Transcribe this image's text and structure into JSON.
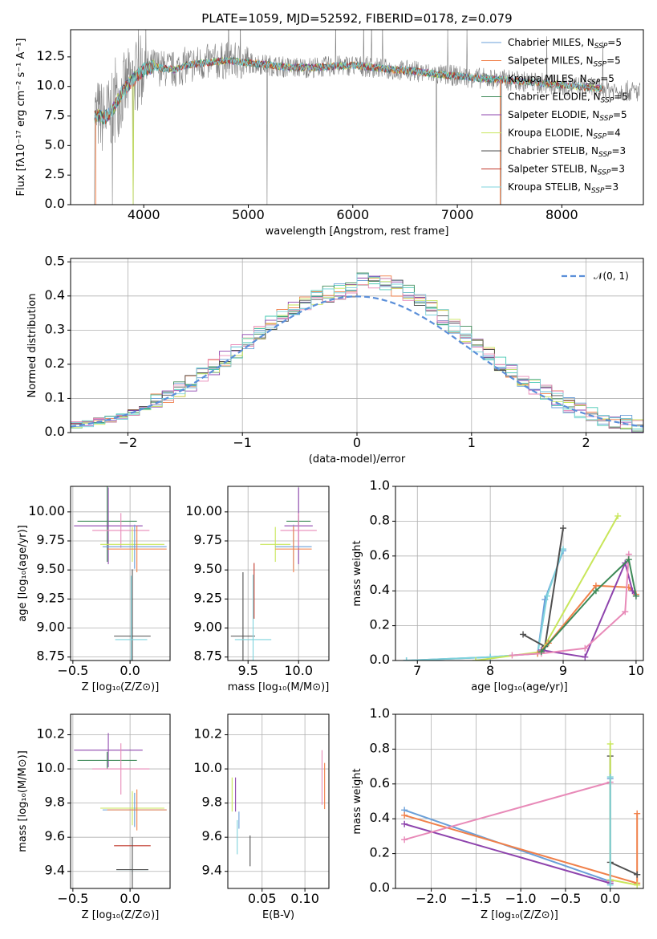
{
  "colors": {
    "chabrier_miles": "#6a9fd8",
    "salpeter_miles": "#f0804a",
    "kroupa_miles": "#40c7b0",
    "chabrier_elodie": "#3e8a58",
    "salpeter_elodie": "#8e44ad",
    "kroupa_elodie": "#c8e65a",
    "chabrier_stelib": "#505050",
    "salpeter_stelib": "#c0392b",
    "kroupa_stelib": "#7fd3dc",
    "pink": "#e88ab8",
    "data": "#808080",
    "normal": "#5b8fd9"
  },
  "chart_data": [
    {
      "id": "spectrum",
      "type": "line",
      "title": "PLATE=1059, MJD=52592, FIBERID=0178, z=0.079",
      "xlabel": "wavelength [Angstrom, rest frame]",
      "ylabel": "Flux [fλ10⁻¹⁷ erg cm⁻² s⁻¹ A⁻¹]",
      "xlim": [
        3300,
        8780
      ],
      "ylim": [
        0,
        14.8
      ],
      "xticks": [
        4000,
        5000,
        6000,
        7000,
        8000
      ],
      "yticks": [
        0.0,
        2.5,
        5.0,
        7.5,
        10.0,
        12.5
      ],
      "grid": false,
      "legend_position": "top-right",
      "legend": [
        "Chabrier MILES, N_SSP=5",
        "Salpeter MILES, N_SSP=5",
        "Kroupa MILES, N_SSP=5",
        "Chabrier ELODIE, N_SSP=5",
        "Salpeter ELODIE, N_SSP=5",
        "Kroupa ELODIE, N_SSP=4",
        "Chabrier STELIB, N_SSP=3",
        "Salpeter STELIB, N_SSP=3",
        "Kroupa STELIB, N_SSP=3"
      ],
      "model_curve": {
        "x": [
          3500,
          3560,
          3620,
          3700,
          3800,
          3900,
          4000,
          4100,
          4200,
          4300,
          4400,
          4600,
          4800,
          5000,
          5200,
          5400,
          5600,
          5800,
          6000,
          6200,
          6400,
          6600,
          6800,
          7000,
          7200,
          7400
        ],
        "y": [
          7.2,
          7.6,
          7.3,
          8.0,
          9.6,
          10.6,
          11.4,
          11.7,
          11.5,
          11.4,
          11.8,
          12.0,
          12.2,
          12.0,
          11.8,
          11.6,
          11.6,
          11.7,
          11.8,
          11.6,
          11.4,
          11.3,
          11.0,
          10.9,
          10.7,
          10.6
        ]
      },
      "data_curve_note": "noisy observed spectrum"
    },
    {
      "id": "residuals",
      "type": "line",
      "xlabel": "(data-model)/error",
      "ylabel": "Normed distribution",
      "xlim": [
        -2.5,
        2.5
      ],
      "ylim": [
        0,
        0.51
      ],
      "xticks": [
        -2,
        -1,
        0,
        1,
        2
      ],
      "yticks": [
        0.0,
        0.1,
        0.2,
        0.3,
        0.4,
        0.5
      ],
      "grid": true,
      "legend_position": "top-right",
      "legend": [
        "𝒩(0, 1)"
      ],
      "normal": {
        "mean": 0,
        "sigma": 1
      }
    },
    {
      "id": "age-Z",
      "type": "scatter",
      "xlabel": "Z [log₁₀(Z/Z⊙)]",
      "ylabel": "age  [log₁₀(age/yr)]",
      "xlim": [
        -0.52,
        0.35
      ],
      "ylim": [
        8.72,
        10.22
      ],
      "xticks": [
        -0.5,
        0.0
      ],
      "yticks": [
        8.75,
        9.0,
        9.25,
        9.5,
        9.75,
        10.0
      ],
      "grid": true,
      "points": [
        {
          "x": -0.2,
          "y": 9.92,
          "xerr": 0.26,
          "yerr": 0.7,
          "c": "chabrier_elodie"
        },
        {
          "x": -0.19,
          "y": 9.88,
          "xerr": 0.3,
          "yerr": 0.66,
          "c": "salpeter_elodie"
        },
        {
          "x": -0.08,
          "y": 9.84,
          "xerr": 0.25,
          "yerr": 0.3,
          "c": "pink"
        },
        {
          "x": 0.02,
          "y": 9.72,
          "xerr": 0.28,
          "yerr": 0.3,
          "c": "kroupa_elodie"
        },
        {
          "x": 0.04,
          "y": 9.7,
          "xerr": 0.28,
          "yerr": 0.38,
          "c": "chabrier_miles"
        },
        {
          "x": 0.06,
          "y": 9.68,
          "xerr": 0.26,
          "yerr": 0.4,
          "c": "salpeter_miles"
        },
        {
          "x": 0.02,
          "y": 8.93,
          "xerr": 0.16,
          "yerr": 1.15,
          "c": "chabrier_stelib"
        },
        {
          "x": 0.01,
          "y": 8.9,
          "xerr": 0.14,
          "yerr": 1.1,
          "c": "kroupa_stelib"
        }
      ]
    },
    {
      "id": "age-mass",
      "type": "scatter",
      "xlabel": "mass [log₁₀(M/M⊙)]",
      "ylabel": "",
      "xlim": [
        9.3,
        10.3
      ],
      "ylim": [
        8.72,
        10.22
      ],
      "xticks": [
        9.5,
        10.0
      ],
      "yticks": [
        8.75,
        9.0,
        9.25,
        9.5,
        9.75,
        10.0
      ],
      "grid": true,
      "points": [
        {
          "x": 10.0,
          "y": 9.92,
          "xerr": 0.12,
          "yerr": 0.1,
          "c": "chabrier_elodie"
        },
        {
          "x": 10.0,
          "y": 9.88,
          "xerr": 0.14,
          "yerr": 0.66,
          "c": "salpeter_elodie"
        },
        {
          "x": 10.0,
          "y": 9.84,
          "xerr": 0.18,
          "yerr": 0.3,
          "c": "pink"
        },
        {
          "x": 9.77,
          "y": 9.72,
          "xerr": 0.15,
          "yerr": 0.3,
          "c": "kroupa_elodie"
        },
        {
          "x": 9.95,
          "y": 9.7,
          "xerr": 0.18,
          "yerr": 0.38,
          "c": "chabrier_miles"
        },
        {
          "x": 9.95,
          "y": 9.68,
          "xerr": 0.18,
          "yerr": 0.4,
          "c": "salpeter_miles"
        },
        {
          "x": 9.45,
          "y": 8.93,
          "xerr": 0.12,
          "yerr": 1.1,
          "c": "chabrier_stelib"
        },
        {
          "x": 9.55,
          "y": 8.9,
          "xerr": 0.18,
          "yerr": 1.12,
          "c": "kroupa_stelib"
        },
        {
          "x": 9.56,
          "y": 9.32,
          "xerr": 0,
          "yerr": 0.48,
          "c": "salpeter_stelib"
        }
      ]
    },
    {
      "id": "weight-age",
      "type": "line",
      "xlabel": "age  [log₁₀(age/yr)]",
      "ylabel": "mass weight",
      "xlim": [
        6.7,
        10.1
      ],
      "ylim": [
        0,
        1.0
      ],
      "xticks": [
        7,
        8,
        9,
        10
      ],
      "yticks": [
        0.0,
        0.2,
        0.4,
        0.6,
        0.8,
        1.0
      ],
      "grid": true,
      "series": [
        {
          "c": "chabrier_miles",
          "x": [
            6.85,
            8.0,
            8.65,
            8.75,
            9.0
          ],
          "y": [
            0.0,
            0.02,
            0.04,
            0.35,
            0.63
          ]
        },
        {
          "c": "kroupa_stelib",
          "x": [
            6.85,
            8.0,
            8.65,
            8.78,
            9.0
          ],
          "y": [
            0.0,
            0.02,
            0.04,
            0.37,
            0.64
          ]
        },
        {
          "c": "chabrier_stelib",
          "x": [
            8.45,
            8.75,
            9.0
          ],
          "y": [
            0.15,
            0.08,
            0.76
          ]
        },
        {
          "c": "kroupa_elodie",
          "x": [
            7.8,
            8.7,
            9.75
          ],
          "y": [
            0.0,
            0.05,
            0.83
          ]
        },
        {
          "c": "salpeter_miles",
          "x": [
            8.65,
            8.8,
            9.45,
            9.9,
            10.0
          ],
          "y": [
            0.04,
            0.1,
            0.43,
            0.42,
            0.38
          ]
        },
        {
          "c": "salpeter_elodie",
          "x": [
            8.7,
            9.3,
            9.85,
            9.95,
            10.0
          ],
          "y": [
            0.06,
            0.02,
            0.56,
            0.4,
            0.37
          ]
        },
        {
          "c": "pink",
          "x": [
            8.3,
            8.7,
            9.3,
            9.85,
            9.9
          ],
          "y": [
            0.03,
            0.04,
            0.07,
            0.28,
            0.61
          ]
        },
        {
          "c": "chabrier_elodie",
          "x": [
            8.7,
            9.45,
            9.9,
            10.0
          ],
          "y": [
            0.05,
            0.4,
            0.58,
            0.37
          ]
        }
      ]
    },
    {
      "id": "mass-Z",
      "type": "scatter",
      "xlabel": "Z [log₁₀(Z/Z⊙)]",
      "ylabel": "mass [log₁₀(M/M⊙)]",
      "xlim": [
        -0.52,
        0.35
      ],
      "ylim": [
        9.3,
        10.32
      ],
      "xticks": [
        -0.5,
        0.0
      ],
      "yticks": [
        9.4,
        9.6,
        9.8,
        10.0,
        10.2
      ],
      "grid": true,
      "points": [
        {
          "x": -0.19,
          "y": 10.11,
          "xerr": 0.3,
          "yerr": 0.2,
          "c": "salpeter_elodie"
        },
        {
          "x": -0.2,
          "y": 10.05,
          "xerr": 0.26,
          "yerr": 0.1,
          "c": "chabrier_elodie"
        },
        {
          "x": -0.08,
          "y": 10.0,
          "xerr": 0.25,
          "yerr": 0.3,
          "c": "pink"
        },
        {
          "x": 0.02,
          "y": 9.77,
          "xerr": 0.28,
          "yerr": 0.2,
          "c": "kroupa_elodie"
        },
        {
          "x": 0.04,
          "y": 9.76,
          "xerr": 0.28,
          "yerr": 0.2,
          "c": "chabrier_miles"
        },
        {
          "x": 0.06,
          "y": 9.76,
          "xerr": 0.26,
          "yerr": 0.24,
          "c": "salpeter_miles"
        },
        {
          "x": 0.02,
          "y": 9.55,
          "xerr": 0.16,
          "yerr": 0,
          "c": "salpeter_stelib"
        },
        {
          "x": 0.02,
          "y": 9.41,
          "xerr": 0.14,
          "yerr": 0.06,
          "c": "kroupa_stelib"
        },
        {
          "x": 0.02,
          "y": 9.41,
          "xerr": 0.14,
          "yerr": 0.38,
          "c": "chabrier_stelib"
        }
      ]
    },
    {
      "id": "mass-EBV",
      "type": "scatter",
      "xlabel": "E(B-V)",
      "ylabel": "",
      "xlim": [
        0.01,
        0.128
      ],
      "ylim": [
        9.3,
        10.32
      ],
      "xticks": [
        0.05,
        0.1
      ],
      "yticks": [
        9.4,
        9.6,
        9.8,
        10.0,
        10.2
      ],
      "grid": true,
      "points": [
        {
          "x": 0.015,
          "y": 9.85,
          "xerr": 0,
          "yerr": 0.2,
          "c": "kroupa_elodie"
        },
        {
          "x": 0.019,
          "y": 9.85,
          "xerr": 0,
          "yerr": 0.2,
          "c": "salpeter_elodie"
        },
        {
          "x": 0.021,
          "y": 9.6,
          "xerr": 0,
          "yerr": 0.2,
          "c": "kroupa_stelib"
        },
        {
          "x": 0.023,
          "y": 9.7,
          "xerr": 0,
          "yerr": 0.1,
          "c": "chabrier_miles"
        },
        {
          "x": 0.036,
          "y": 9.52,
          "xerr": 0,
          "yerr": 0.18,
          "c": "chabrier_stelib"
        },
        {
          "x": 0.12,
          "y": 9.95,
          "xerr": 0,
          "yerr": 0.32,
          "c": "pink"
        },
        {
          "x": 0.123,
          "y": 9.9,
          "xerr": 0,
          "yerr": 0.27,
          "c": "salpeter_miles"
        }
      ]
    },
    {
      "id": "weight-Z",
      "type": "line",
      "xlabel": "Z [log₁₀(Z/Z⊙)]",
      "ylabel": "mass weight",
      "xlim": [
        -2.4,
        0.37
      ],
      "ylim": [
        0,
        1.0
      ],
      "xticks": [
        -2.0,
        -1.5,
        -1.0,
        -0.5,
        0.0
      ],
      "yticks": [
        0.0,
        0.2,
        0.4,
        0.6,
        0.8,
        1.0
      ],
      "grid": true,
      "series": [
        {
          "c": "chabrier_miles",
          "x": [
            -2.3,
            0.0,
            0.0
          ],
          "y": [
            0.45,
            0.04,
            0.63
          ]
        },
        {
          "c": "salpeter_elodie",
          "x": [
            -2.3,
            0.0
          ],
          "y": [
            0.37,
            0.03
          ]
        },
        {
          "c": "salpeter_miles",
          "x": [
            -2.3,
            0.3,
            0.3
          ],
          "y": [
            0.42,
            0.03,
            0.43
          ]
        },
        {
          "c": "pink",
          "x": [
            -2.3,
            0.0,
            0.0
          ],
          "y": [
            0.28,
            0.61,
            0.04
          ]
        },
        {
          "c": "chabrier_stelib",
          "x": [
            0.0,
            0.0,
            0.3,
            0.3
          ],
          "y": [
            0.76,
            0.15,
            0.08,
            0.08
          ]
        },
        {
          "c": "kroupa_elodie",
          "x": [
            0.0,
            0.0,
            0.3
          ],
          "y": [
            0.83,
            0.05,
            0.02
          ]
        },
        {
          "c": "kroupa_stelib",
          "x": [
            0.0,
            0.0
          ],
          "y": [
            0.64,
            0.02
          ]
        }
      ]
    }
  ]
}
